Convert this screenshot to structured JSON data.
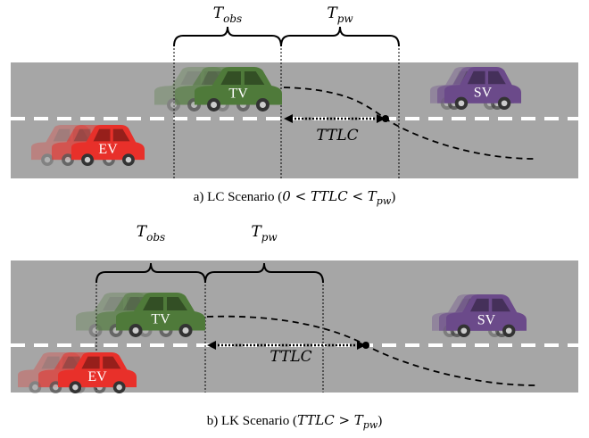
{
  "panels": [
    {
      "braces": [
        {
          "base": "T",
          "sub": "obs"
        },
        {
          "base": "T",
          "sub": "pw"
        }
      ],
      "cars": {
        "tv": "TV",
        "sv": "SV",
        "ev": "EV"
      },
      "ttlc": "TTLC",
      "caption": {
        "prefix": "a) LC Scenario (",
        "math": "0 < TTLC < T",
        "sub": "pw",
        "suffix": ")"
      }
    },
    {
      "braces": [
        {
          "base": "T",
          "sub": "obs"
        },
        {
          "base": "T",
          "sub": "pw"
        }
      ],
      "cars": {
        "tv": "TV",
        "sv": "SV",
        "ev": "EV"
      },
      "ttlc": "TTLC",
      "caption": {
        "prefix": "b) LK Scenario (",
        "math": "TTLC > T",
        "sub": "pw",
        "suffix": ")"
      }
    }
  ]
}
